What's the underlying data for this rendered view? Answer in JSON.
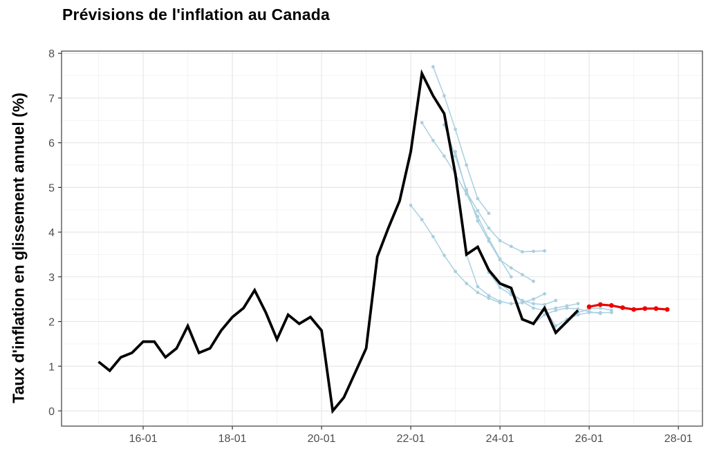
{
  "chart_data": {
    "type": "line",
    "title": "Prévisions de l'inflation au Canada",
    "ylabel": "Taux d'inflation en glissement annuel (%)",
    "xlabel": "",
    "x_ticks": [
      {
        "year": 2016,
        "label": "16-01"
      },
      {
        "year": 2018,
        "label": "18-01"
      },
      {
        "year": 2020,
        "label": "20-01"
      },
      {
        "year": 2022,
        "label": "22-01"
      },
      {
        "year": 2024,
        "label": "24-01"
      },
      {
        "year": 2026,
        "label": "26-01"
      },
      {
        "year": 2028,
        "label": "28-01"
      }
    ],
    "x_minor_years": [
      2015,
      2017,
      2019,
      2021,
      2023,
      2025,
      2027
    ],
    "y_ticks": [
      0,
      1,
      2,
      3,
      4,
      5,
      6,
      7,
      8
    ],
    "y_minor": [
      0.5,
      1.5,
      2.5,
      3.5,
      4.5,
      5.5,
      6.5,
      7.5
    ],
    "x_domain": [
      2014.17,
      2028.54
    ],
    "y_domain": [
      -0.34,
      8.05
    ],
    "grid": true,
    "legend": "none",
    "colors": {
      "historical": "#000000",
      "past_forecasts": "#a9cfe0",
      "latest_forecast": "#ee0000",
      "grid_major": "#e6e6e6",
      "grid_minor": "#f3f3f3",
      "axis_text": "#4d4d4d",
      "panel_border": "#4a4a4a"
    },
    "series": {
      "historical": {
        "start": "2015-01",
        "frequency": "quarterly",
        "values": [
          1.1,
          0.9,
          1.2,
          1.3,
          1.55,
          1.55,
          1.2,
          1.4,
          1.9,
          1.3,
          1.4,
          1.8,
          2.1,
          2.3,
          2.7,
          2.2,
          1.6,
          2.15,
          1.95,
          2.1,
          1.8,
          0.0,
          0.3,
          0.85,
          1.4,
          3.45,
          4.1,
          4.7,
          5.8,
          7.55,
          7.05,
          6.65,
          5.3,
          3.5,
          3.67,
          3.15,
          2.85,
          2.75,
          2.05,
          1.95,
          2.3,
          1.75,
          2.0,
          2.25
        ]
      },
      "past_forecasts": [
        {
          "start": "2022-01",
          "values": [
            4.6,
            4.28,
            3.9,
            3.48,
            3.12,
            2.85,
            2.65,
            2.52,
            2.42
          ]
        },
        {
          "start": "2022-04",
          "values": [
            6.45,
            6.05,
            5.7,
            5.3,
            4.85,
            4.35,
            3.85,
            3.4,
            3.0
          ]
        },
        {
          "start": "2022-07",
          "values": [
            7.7,
            7.05,
            6.3,
            5.5,
            4.75,
            4.42
          ]
        },
        {
          "start": "2022-10",
          "values": [
            6.4,
            5.7,
            4.95,
            4.25,
            3.8,
            3.38,
            3.2,
            3.05,
            2.9
          ]
        },
        {
          "start": "2023-01",
          "values": [
            5.8,
            4.9,
            4.48,
            4.09,
            3.81,
            3.68,
            3.56,
            3.57,
            3.58
          ]
        },
        {
          "start": "2023-04",
          "values": [
            3.5,
            2.78,
            2.58,
            2.45,
            2.4,
            2.42,
            2.5,
            2.62
          ]
        },
        {
          "start": "2023-07",
          "values": [
            3.67,
            3.1,
            2.76,
            2.6,
            2.47,
            2.4,
            2.38,
            2.47
          ]
        },
        {
          "start": "2024-01",
          "values": [
            2.85,
            2.65,
            2.45,
            2.3,
            2.25,
            2.3,
            2.35,
            2.4
          ]
        },
        {
          "start": "2024-07",
          "values": [
            2.05,
            1.95,
            2.15,
            2.25,
            2.3,
            2.28,
            2.22,
            2.18
          ]
        },
        {
          "start": "2025-01",
          "values": [
            2.3,
            1.9,
            2.05,
            2.15,
            2.2,
            2.2,
            2.2
          ]
        },
        {
          "start": "2025-04",
          "values": [
            1.75,
            2.0,
            2.2,
            2.28,
            2.3,
            2.25
          ]
        }
      ],
      "latest_forecast": {
        "start": "2026-01",
        "values": [
          2.33,
          2.38,
          2.36,
          2.31,
          2.27,
          2.29,
          2.29,
          2.27
        ]
      }
    }
  }
}
